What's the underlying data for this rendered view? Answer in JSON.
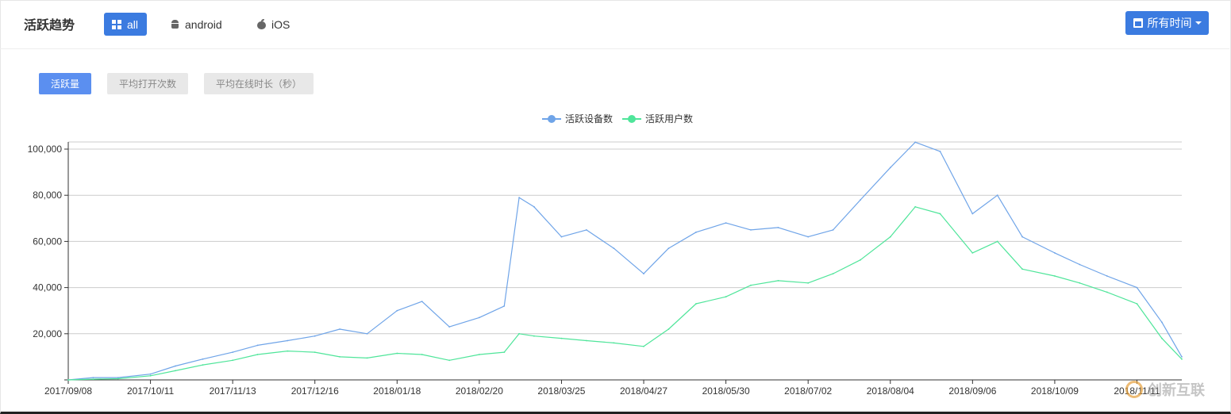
{
  "header": {
    "title": "活跃趋势",
    "platform_tabs": [
      {
        "label": "all",
        "active": true,
        "icon": "grid-icon"
      },
      {
        "label": "android",
        "active": false,
        "icon": "android-icon"
      },
      {
        "label": "iOS",
        "active": false,
        "icon": "apple-icon"
      }
    ],
    "time_button": {
      "label": "所有时间",
      "icon": "calendar-icon"
    }
  },
  "metric_tabs": [
    {
      "label": "活跃量",
      "active": true
    },
    {
      "label": "平均打开次数",
      "active": false
    },
    {
      "label": "平均在线时长（秒）",
      "active": false
    }
  ],
  "colors": {
    "accent": "#3b7be0",
    "series_devices": "#6fa4e8",
    "series_users": "#4fe59a"
  },
  "watermark": {
    "text": "创新互联"
  },
  "chart_data": {
    "type": "line",
    "title": "",
    "xlabel": "",
    "ylabel": "",
    "ylim": [
      0,
      100000
    ],
    "yticks": [
      0,
      20000,
      40000,
      60000,
      80000,
      100000
    ],
    "ytick_labels": [
      "",
      "20,000",
      "40,000",
      "60,000",
      "80,000",
      "100,000"
    ],
    "xtick_labels": [
      "2017/09/08",
      "2017/10/11",
      "2017/11/13",
      "2017/12/16",
      "2018/01/18",
      "2018/02/20",
      "2018/03/25",
      "2018/04/27",
      "2018/05/30",
      "2018/07/02",
      "2018/08/04",
      "2018/09/06",
      "2018/10/09",
      "2018/11/11"
    ],
    "x": [
      "2017/09/08",
      "2017/09/18",
      "2017/09/28",
      "2017/10/11",
      "2017/10/21",
      "2017/11/01",
      "2017/11/13",
      "2017/11/23",
      "2017/12/05",
      "2017/12/16",
      "2017/12/26",
      "2018/01/06",
      "2018/01/18",
      "2018/01/28",
      "2018/02/08",
      "2018/02/20",
      "2018/03/02",
      "2018/03/08",
      "2018/03/14",
      "2018/03/25",
      "2018/04/04",
      "2018/04/15",
      "2018/04/27",
      "2018/05/07",
      "2018/05/18",
      "2018/05/30",
      "2018/06/09",
      "2018/06/20",
      "2018/07/02",
      "2018/07/12",
      "2018/07/23",
      "2018/08/04",
      "2018/08/14",
      "2018/08/24",
      "2018/09/06",
      "2018/09/16",
      "2018/09/26",
      "2018/10/09",
      "2018/10/19",
      "2018/10/30",
      "2018/11/11",
      "2018/11/21",
      "2018/11/29"
    ],
    "legend_position": "top-center",
    "grid": true,
    "series": [
      {
        "name": "活跃设备数",
        "color": "#6fa4e8",
        "values": [
          0,
          1000,
          1000,
          2500,
          6000,
          9000,
          12000,
          15000,
          17000,
          19000,
          22000,
          20000,
          30000,
          34000,
          23000,
          27000,
          32000,
          79000,
          75000,
          62000,
          65000,
          57000,
          46000,
          57000,
          64000,
          68000,
          65000,
          66000,
          62000,
          65000,
          78000,
          92000,
          103000,
          99000,
          72000,
          80000,
          62000,
          55000,
          50000,
          45000,
          40000,
          25000,
          10000
        ]
      },
      {
        "name": "活跃用户数",
        "color": "#4fe59a",
        "values": [
          0,
          300,
          500,
          1800,
          4000,
          6500,
          8500,
          11000,
          12500,
          12000,
          10000,
          9500,
          11500,
          11000,
          8500,
          11000,
          12000,
          20000,
          19000,
          18000,
          17000,
          16000,
          14500,
          22000,
          33000,
          36000,
          41000,
          43000,
          42000,
          46000,
          52000,
          62000,
          75000,
          72000,
          55000,
          60000,
          48000,
          45000,
          42000,
          38000,
          33000,
          18000,
          9000
        ]
      }
    ]
  }
}
